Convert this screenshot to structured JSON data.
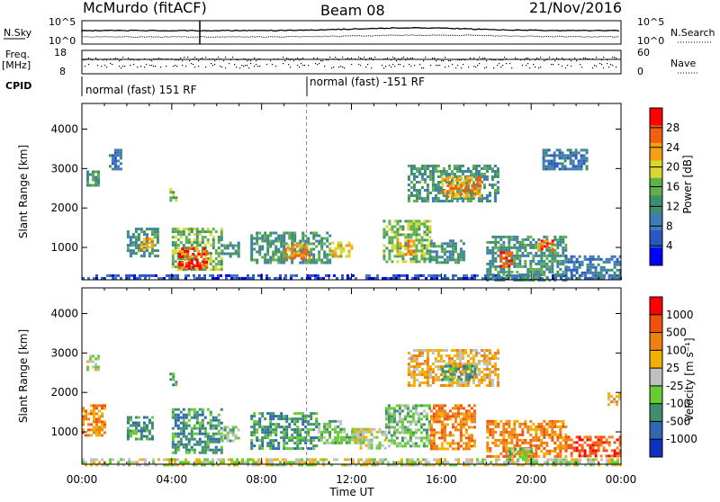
{
  "header": {
    "station": "McMurdo (fitACF)",
    "beam": "Beam 08",
    "date": "21/Nov/2016"
  },
  "status_panels": {
    "left_labels": [
      "N.Sky",
      "Freq.",
      "[MHz]",
      "CPID"
    ],
    "right_labels": [
      "N.Search",
      "Nave"
    ],
    "noise_ticks_left": [
      "10^5",
      "10^0"
    ],
    "noise_ticks_right": [
      "10^5",
      "10^0"
    ],
    "freq_ticks": [
      "18",
      "8"
    ],
    "nave_ticks": [
      "60",
      "0"
    ],
    "cpid_segments": [
      "normal (fast) 151 RF",
      "normal (fast) -151 RF"
    ],
    "cpid_switch_hour": 10.0
  },
  "chart_data": [
    {
      "type": "heatmap",
      "name": "power",
      "ylabel": "Slant Range [km]",
      "xlabel": "Time UT",
      "x_ticks": [
        "00:00",
        "04:00",
        "08:00",
        "12:00",
        "16:00",
        "20:00",
        "00:00"
      ],
      "x_range_hours": [
        0,
        24
      ],
      "y_ticks": [
        "1000",
        "2000",
        "3000",
        "4000"
      ],
      "y_range_km": [
        180,
        4650
      ],
      "colorbar": {
        "label": "Power [dB]",
        "ticks": [
          "4",
          "8",
          "12",
          "16",
          "20",
          "24",
          "28"
        ],
        "range": [
          0,
          32
        ],
        "colors": [
          "#0000ff",
          "#2b57c5",
          "#3f7bb4",
          "#3f8f6e",
          "#5fb04a",
          "#d8d830",
          "#f4a010",
          "#f06010",
          "#ff0000"
        ]
      },
      "echo_regions_hours_km": [
        {
          "t0": 0.0,
          "t1": 24.0,
          "r0": 190,
          "r1": 320,
          "level": 1
        },
        {
          "t0": 0.2,
          "t1": 0.8,
          "r0": 2550,
          "r1": 2950,
          "level": 3
        },
        {
          "t0": 1.2,
          "t1": 1.8,
          "r0": 3000,
          "r1": 3500,
          "level": 2
        },
        {
          "t0": 2.0,
          "t1": 3.4,
          "r0": 800,
          "r1": 1500,
          "level": 3
        },
        {
          "t0": 2.6,
          "t1": 3.1,
          "r0": 950,
          "r1": 1250,
          "level": 6
        },
        {
          "t0": 3.9,
          "t1": 4.2,
          "r0": 2200,
          "r1": 2500,
          "level": 4
        },
        {
          "t0": 4.0,
          "t1": 6.2,
          "r0": 450,
          "r1": 1500,
          "level": 4
        },
        {
          "t0": 4.3,
          "t1": 5.6,
          "r0": 500,
          "r1": 1000,
          "level": 7
        },
        {
          "t0": 4.6,
          "t1": 5.3,
          "r0": 480,
          "r1": 700,
          "level": 8
        },
        {
          "t0": 6.2,
          "t1": 7.0,
          "r0": 750,
          "r1": 1150,
          "level": 3
        },
        {
          "t0": 7.5,
          "t1": 11.0,
          "r0": 600,
          "r1": 1400,
          "level": 3
        },
        {
          "t0": 9.0,
          "t1": 10.2,
          "r0": 700,
          "r1": 1100,
          "level": 6
        },
        {
          "t0": 11.0,
          "t1": 12.0,
          "r0": 750,
          "r1": 1150,
          "level": 5
        },
        {
          "t0": 13.4,
          "t1": 15.5,
          "r0": 650,
          "r1": 1700,
          "level": 4
        },
        {
          "t0": 14.0,
          "t1": 14.8,
          "r0": 800,
          "r1": 1200,
          "level": 6
        },
        {
          "t0": 15.5,
          "t1": 17.0,
          "r0": 600,
          "r1": 1200,
          "level": 3
        },
        {
          "t0": 14.5,
          "t1": 18.5,
          "r0": 2200,
          "r1": 3100,
          "level": 3
        },
        {
          "t0": 16.0,
          "t1": 17.8,
          "r0": 2300,
          "r1": 2800,
          "level": 6
        },
        {
          "t0": 18.0,
          "t1": 21.5,
          "r0": 200,
          "r1": 1300,
          "level": 3
        },
        {
          "t0": 18.6,
          "t1": 19.2,
          "r0": 500,
          "r1": 900,
          "level": 7
        },
        {
          "t0": 20.3,
          "t1": 21.0,
          "r0": 900,
          "r1": 1200,
          "level": 7
        },
        {
          "t0": 21.5,
          "t1": 24.0,
          "r0": 250,
          "r1": 800,
          "level": 2
        },
        {
          "t0": 20.5,
          "t1": 22.5,
          "r0": 3000,
          "r1": 3500,
          "level": 2
        }
      ]
    },
    {
      "type": "heatmap",
      "name": "velocity",
      "ylabel": "Slant Range [km]",
      "xlabel": "Time UT",
      "x_ticks": [
        "00:00",
        "04:00",
        "08:00",
        "12:00",
        "16:00",
        "20:00",
        "00:00"
      ],
      "x_range_hours": [
        0,
        24
      ],
      "y_ticks": [
        "1000",
        "2000",
        "3000",
        "4000"
      ],
      "y_range_km": [
        180,
        4650
      ],
      "colorbar": {
        "label": "Velocity [m s⁻¹]",
        "ticks": [
          "1000",
          "500",
          "100",
          "25",
          "-25",
          "-100",
          "-500",
          "-1000"
        ],
        "colors": [
          "#1030c0",
          "#2f68b0",
          "#3f8f6e",
          "#66cc33",
          "#c0c0c0",
          "#f4b000",
          "#f08010",
          "#f05010",
          "#ff0000"
        ]
      },
      "echo_regions_hours_km": [
        {
          "t0": 0.0,
          "t1": 24.0,
          "r0": 190,
          "r1": 330,
          "level": 4
        },
        {
          "t0": 0.0,
          "t1": 1.0,
          "r0": 900,
          "r1": 1700,
          "level": 6
        },
        {
          "t0": 0.2,
          "t1": 0.8,
          "r0": 2550,
          "r1": 2950,
          "level": 4
        },
        {
          "t0": 2.0,
          "t1": 3.2,
          "r0": 850,
          "r1": 1400,
          "level": 2
        },
        {
          "t0": 3.9,
          "t1": 4.2,
          "r0": 2200,
          "r1": 2500,
          "level": 2
        },
        {
          "t0": 4.0,
          "t1": 6.2,
          "r0": 500,
          "r1": 1600,
          "level": 2
        },
        {
          "t0": 6.2,
          "t1": 7.0,
          "r0": 750,
          "r1": 1150,
          "level": 3
        },
        {
          "t0": 7.5,
          "t1": 10.5,
          "r0": 600,
          "r1": 1500,
          "level": 2
        },
        {
          "t0": 10.5,
          "t1": 11.5,
          "r0": 700,
          "r1": 1300,
          "level": 3
        },
        {
          "t0": 11.5,
          "t1": 12.5,
          "r0": 700,
          "r1": 1100,
          "level": 3
        },
        {
          "t0": 12.0,
          "t1": 13.5,
          "r0": 600,
          "r1": 1100,
          "level": 4
        },
        {
          "t0": 13.5,
          "t1": 15.5,
          "r0": 650,
          "r1": 1700,
          "level": 3
        },
        {
          "t0": 15.5,
          "t1": 17.5,
          "r0": 600,
          "r1": 1700,
          "level": 6
        },
        {
          "t0": 14.5,
          "t1": 18.5,
          "r0": 2200,
          "r1": 3100,
          "level": 5
        },
        {
          "t0": 16.0,
          "t1": 17.5,
          "r0": 2300,
          "r1": 2700,
          "level": 2
        },
        {
          "t0": 18.0,
          "t1": 21.5,
          "r0": 350,
          "r1": 1300,
          "level": 6
        },
        {
          "t0": 19.0,
          "t1": 20.0,
          "r0": 300,
          "r1": 600,
          "level": 3
        },
        {
          "t0": 21.5,
          "t1": 24.0,
          "r0": 400,
          "r1": 900,
          "level": 7
        },
        {
          "t0": 23.4,
          "t1": 24.0,
          "r0": 1700,
          "r1": 2000,
          "level": 5
        }
      ]
    }
  ]
}
